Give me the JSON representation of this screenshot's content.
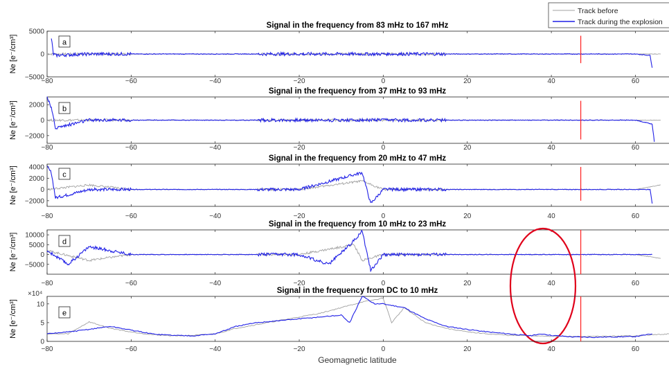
{
  "figure": {
    "xlabel": "Geomagnetic latitude",
    "legend": {
      "placement": "top-right",
      "entries": [
        "Track before",
        "Track during the explosion"
      ]
    },
    "colors": {
      "before": "#a0a0a0",
      "during": "#1f1fe6",
      "marker": "#ff2a2a",
      "annotation_ellipse": "#e0001a"
    }
  },
  "chart_data": [
    {
      "type": "line",
      "panel_label": "a",
      "title": "Signal in the frequency from 83 mHz to 167 mHz",
      "ylabel": "Ne [e⁻/cm³]",
      "xlim": [
        -80,
        68
      ],
      "ylim": [
        -5000,
        5000
      ],
      "xticks": [
        -80,
        -60,
        -40,
        -20,
        0,
        20,
        40,
        60
      ],
      "yticks": [
        -5000,
        0,
        5000
      ],
      "ytick_labels": [
        "−5000",
        "0",
        "5000"
      ],
      "series": [
        {
          "name": "Track before",
          "x": [
            -80,
            -60,
            -40,
            -20,
            0,
            20,
            40,
            60,
            66
          ],
          "y": [
            0,
            0,
            0,
            0,
            0,
            0,
            0,
            0,
            0
          ]
        },
        {
          "name": "Track during the explosion",
          "x": [
            -79,
            -78.5,
            -78,
            -70,
            -60,
            -40,
            -20,
            -5,
            0,
            20,
            40,
            60,
            63.5,
            64
          ],
          "y": [
            3500,
            0,
            -300,
            0,
            0,
            0,
            0,
            0,
            0,
            0,
            0,
            0,
            -300,
            -3000
          ]
        }
      ],
      "marker_line_x": 47,
      "marker_line_y": [
        -2000,
        4000
      ]
    },
    {
      "type": "line",
      "panel_label": "b",
      "title": "Signal in the frequency from 37 mHz to 93 mHz",
      "ylabel": "Ne [e⁻/cm³]",
      "xlim": [
        -80,
        68
      ],
      "ylim": [
        -3000,
        3000
      ],
      "xticks": [
        -80,
        -60,
        -40,
        -20,
        0,
        20,
        40,
        60
      ],
      "yticks": [
        -2000,
        0,
        2000
      ],
      "ytick_labels": [
        "−2000",
        "0",
        "2000"
      ],
      "series": [
        {
          "name": "Track before",
          "x": [
            -80,
            -70,
            -60,
            -40,
            -20,
            0,
            20,
            40,
            60,
            66
          ],
          "y": [
            0,
            0,
            0,
            0,
            0,
            0,
            0,
            0,
            0,
            0
          ]
        },
        {
          "name": "Track during the explosion",
          "x": [
            -80,
            -79,
            -78,
            -70,
            -60,
            -40,
            -20,
            -5,
            0,
            20,
            40,
            60,
            64,
            64.5
          ],
          "y": [
            3000,
            1500,
            -1000,
            0,
            0,
            0,
            0,
            0,
            0,
            0,
            0,
            0,
            -500,
            -2800
          ]
        }
      ],
      "marker_line_x": 47,
      "marker_line_y": [
        -2500,
        2500
      ]
    },
    {
      "type": "line",
      "panel_label": "c",
      "title": "Signal in the frequency from 20 mHz to 47 mHz",
      "ylabel": "Ne [e⁻/cm³]",
      "xlim": [
        -80,
        68
      ],
      "ylim": [
        -3000,
        4500
      ],
      "xticks": [
        -80,
        -60,
        -40,
        -20,
        0,
        20,
        40,
        60
      ],
      "yticks": [
        -2000,
        0,
        2000,
        4000
      ],
      "ytick_labels": [
        "−2000",
        "0",
        "2000",
        "4000"
      ],
      "series": [
        {
          "name": "Track before",
          "x": [
            -80,
            -70,
            -60,
            -40,
            -20,
            -5,
            0,
            20,
            40,
            60,
            66
          ],
          "y": [
            0,
            800,
            0,
            0,
            0,
            1500,
            0,
            0,
            0,
            0,
            800
          ]
        },
        {
          "name": "Track during the explosion",
          "x": [
            -80,
            -79,
            -78,
            -70,
            -60,
            -40,
            -20,
            -5,
            -3,
            0,
            20,
            40,
            60,
            63.5,
            64
          ],
          "y": [
            4000,
            3000,
            -1500,
            0,
            0,
            0,
            0,
            3000,
            -2500,
            0,
            0,
            0,
            0,
            0,
            -2500
          ]
        }
      ],
      "marker_line_x": 47,
      "marker_line_y": [
        -2000,
        4000
      ]
    },
    {
      "type": "line",
      "panel_label": "d",
      "title": "Signal in the frequency from 10 mHz to 23 mHz",
      "ylabel": "Ne [e⁻/cm³]",
      "xlim": [
        -80,
        68
      ],
      "ylim": [
        -10000,
        12500
      ],
      "xticks": [
        -80,
        -60,
        -40,
        -20,
        0,
        20,
        40,
        60
      ],
      "yticks": [
        -5000,
        0,
        5000,
        10000
      ],
      "ytick_labels": [
        "−5000",
        "0",
        "5000",
        "10000"
      ],
      "series": [
        {
          "name": "Track before",
          "x": [
            -80,
            -70,
            -60,
            -40,
            -20,
            -7,
            -5,
            0,
            20,
            40,
            60,
            66
          ],
          "y": [
            2000,
            -3000,
            0,
            0,
            0,
            5000,
            -3000,
            0,
            0,
            0,
            0,
            -2000
          ]
        },
        {
          "name": "Track during the explosion",
          "x": [
            -80,
            -75,
            -70,
            -60,
            -40,
            -20,
            -13,
            -7,
            -5,
            -3,
            0,
            20,
            40,
            60,
            64
          ],
          "y": [
            2000,
            -5000,
            4000,
            0,
            0,
            0,
            -5000,
            7000,
            12000,
            -8000,
            0,
            0,
            0,
            0,
            0
          ]
        }
      ],
      "marker_line_x": 47,
      "marker_line_y": [
        -10000,
        12500
      ],
      "annotation": {
        "shape": "ellipse",
        "center_x": 38,
        "center_y": 0
      }
    },
    {
      "type": "line",
      "panel_label": "e",
      "title": "Signal in the frequency from DC to 10 mHz",
      "ylabel": "Ne [e⁻/cm³]",
      "y_multiplier": "×10⁴",
      "xlim": [
        -80,
        68
      ],
      "ylim": [
        0,
        12
      ],
      "xticks": [
        -80,
        -60,
        -40,
        -20,
        0,
        20,
        40,
        60
      ],
      "yticks": [
        0,
        5,
        10
      ],
      "ytick_labels": [
        "0",
        "5",
        "10"
      ],
      "series": [
        {
          "name": "Track before",
          "x": [
            -80,
            -75,
            -70,
            -65,
            -60,
            -55,
            -50,
            -45,
            -40,
            -35,
            -30,
            -25,
            -20,
            -15,
            -10,
            -5,
            0,
            2,
            5,
            10,
            15,
            20,
            25,
            30,
            35,
            40,
            45,
            50,
            55,
            60,
            65,
            68
          ],
          "y": [
            2,
            2,
            5.2,
            3.5,
            2.5,
            1.8,
            1.5,
            1.6,
            2,
            3.5,
            4.5,
            5.5,
            6.5,
            7.5,
            9,
            10.5,
            11.5,
            5,
            9,
            5,
            3.5,
            2.5,
            2,
            1.6,
            1.5,
            1.4,
            1.3,
            1.3,
            1.4,
            1.5,
            1.8,
            2
          ]
        },
        {
          "name": "Track during the explosion",
          "x": [
            -80,
            -75,
            -70,
            -65,
            -60,
            -55,
            -50,
            -45,
            -40,
            -35,
            -30,
            -25,
            -20,
            -15,
            -10,
            -8,
            -5,
            -2,
            0,
            5,
            10,
            15,
            20,
            25,
            30,
            35,
            38,
            40,
            45,
            50,
            55,
            60,
            64
          ],
          "y": [
            2,
            2.5,
            3.2,
            4,
            3,
            2,
            1.6,
            1.5,
            2,
            4,
            5,
            5.5,
            6,
            6.5,
            7,
            5,
            12,
            10,
            10,
            9,
            6,
            4,
            3.2,
            2.5,
            2,
            1.5,
            2,
            1.6,
            1.2,
            1.1,
            1.2,
            1.3,
            2
          ]
        }
      ],
      "marker_line_x": 47,
      "marker_line_y": [
        0,
        12
      ]
    }
  ]
}
